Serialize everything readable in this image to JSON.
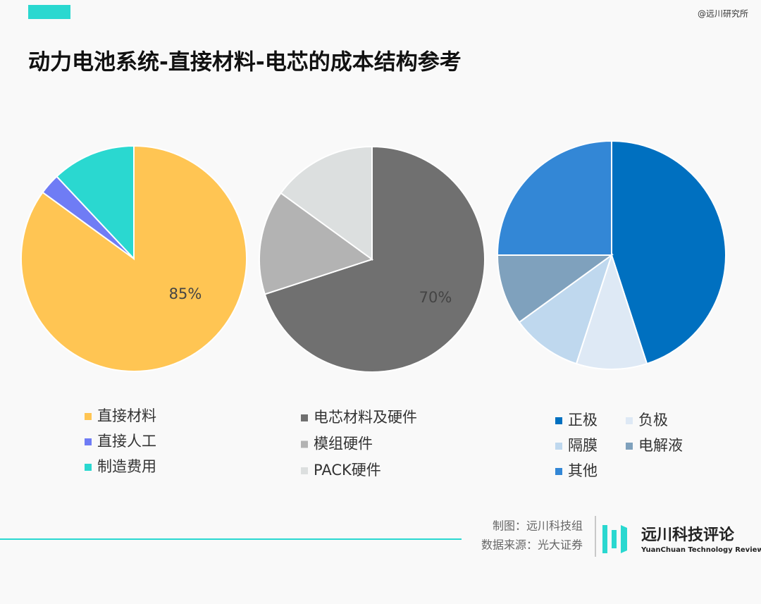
{
  "header": {
    "title": "动力电池系统-直接材料-电芯的成本结构参考",
    "watermark": "@远川研究所"
  },
  "chart_data": [
    {
      "type": "pie",
      "categories": [
        "直接材料",
        "直接人工",
        "制造费用"
      ],
      "values": [
        85,
        3,
        12
      ],
      "value_labels": [
        "85%",
        null,
        null
      ],
      "colors": [
        "#ffc553",
        "#6f7cf5",
        "#2ad8d0"
      ]
    },
    {
      "type": "pie",
      "categories": [
        "电芯材料及硬件",
        "模组硬件",
        "PACK硬件"
      ],
      "values": [
        70,
        15,
        15
      ],
      "value_labels": [
        "70%",
        null,
        null
      ],
      "colors": [
        "#707070",
        "#b3b3b3",
        "#dcdfdf"
      ]
    },
    {
      "type": "pie",
      "categories": [
        "正极",
        "负极",
        "隔膜",
        "电解液",
        "其他"
      ],
      "values": [
        45,
        10,
        10,
        10,
        25
      ],
      "colors": [
        "#0070c0",
        "#dee9f5",
        "#bfd8ee",
        "#7fa1bd",
        "#3387d6"
      ]
    }
  ],
  "footer": {
    "credit": "制图：远川科技组",
    "source": "数据来源：光大证券",
    "logo_cn": "远川科技评论",
    "logo_en": "YuanChuan Technology Review"
  }
}
